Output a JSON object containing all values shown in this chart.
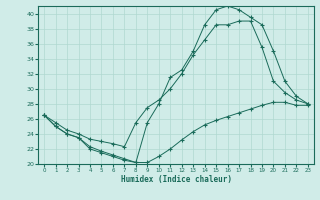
{
  "xlabel": "Humidex (Indice chaleur)",
  "bg_color": "#d0ece8",
  "line_color": "#1a6b5a",
  "grid_color": "#b0d8d0",
  "xlim": [
    -0.5,
    23.5
  ],
  "ylim": [
    20,
    41
  ],
  "xticks": [
    0,
    1,
    2,
    3,
    4,
    5,
    6,
    7,
    8,
    9,
    10,
    11,
    12,
    13,
    14,
    15,
    16,
    17,
    18,
    19,
    20,
    21,
    22,
    23
  ],
  "yticks": [
    20,
    22,
    24,
    26,
    28,
    30,
    32,
    34,
    36,
    38,
    40
  ],
  "line1_x": [
    0,
    1,
    2,
    3,
    4,
    5,
    6,
    7,
    8,
    9,
    10,
    11,
    12,
    13,
    14,
    15,
    16,
    17,
    18,
    19,
    20,
    21,
    22,
    23
  ],
  "line1_y": [
    26.5,
    25.0,
    24.0,
    23.5,
    22.0,
    21.5,
    21.0,
    20.5,
    20.2,
    25.5,
    28.0,
    31.5,
    32.5,
    35.0,
    38.5,
    40.5,
    41.0,
    40.5,
    39.5,
    38.5,
    35.0,
    31.0,
    29.0,
    28.0
  ],
  "line2_x": [
    0,
    1,
    2,
    3,
    4,
    5,
    6,
    7,
    8,
    9,
    10,
    11,
    12,
    13,
    14,
    15,
    16,
    17,
    18,
    19,
    20,
    21,
    22,
    23
  ],
  "line2_y": [
    26.5,
    25.0,
    24.0,
    23.5,
    22.3,
    21.7,
    21.2,
    20.7,
    20.2,
    20.2,
    21.0,
    22.0,
    23.2,
    24.3,
    25.2,
    25.8,
    26.3,
    26.8,
    27.3,
    27.8,
    28.2,
    28.2,
    27.8,
    27.8
  ],
  "line3_x": [
    0,
    1,
    2,
    3,
    4,
    5,
    6,
    7,
    8,
    9,
    10,
    11,
    12,
    13,
    14,
    15,
    16,
    17,
    18,
    19,
    20,
    21,
    22,
    23
  ],
  "line3_y": [
    26.5,
    25.5,
    24.5,
    24.0,
    23.3,
    23.0,
    22.7,
    22.3,
    25.5,
    27.5,
    28.5,
    30.0,
    32.0,
    34.5,
    36.5,
    38.5,
    38.5,
    39.0,
    39.0,
    35.5,
    31.0,
    29.5,
    28.5,
    28.0
  ]
}
